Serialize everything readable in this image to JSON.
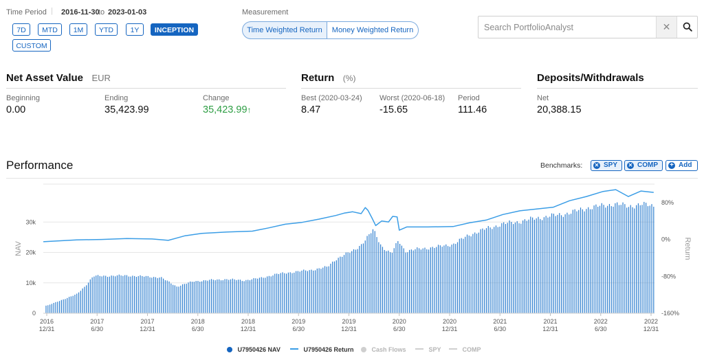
{
  "time_period": {
    "label": "Time Period",
    "start": "2016-11-30",
    "sep": "to",
    "end": "2023-01-03",
    "buttons": [
      "7D",
      "MTD",
      "1M",
      "YTD",
      "1Y",
      "INCEPTION",
      "CUSTOM"
    ],
    "active": "INCEPTION"
  },
  "measurement": {
    "label": "Measurement",
    "options": [
      "Time Weighted Return",
      "Money Weighted Return"
    ],
    "selected": "Time Weighted Return"
  },
  "search": {
    "placeholder": "Search PortfolioAnalyst"
  },
  "nav": {
    "title": "Net Asset Value",
    "currency": "EUR",
    "beginning_label": "Beginning",
    "beginning": "0.00",
    "ending_label": "Ending",
    "ending": "35,423.99",
    "change_label": "Change",
    "change": "35,423.99",
    "change_color": "#2e9e44"
  },
  "return": {
    "title": "Return",
    "unit": "(%)",
    "best_label": "Best (2020-03-24)",
    "best": "8.47",
    "worst_label": "Worst (2020-06-18)",
    "worst": "-15.65",
    "period_label": "Period",
    "period": "111.46"
  },
  "deposits": {
    "title": "Deposits/Withdrawals",
    "net_label": "Net",
    "net": "20,388.15"
  },
  "performance": {
    "title": "Performance",
    "benchmarks_label": "Benchmarks:",
    "benchmarks": [
      "SPY",
      "COMP"
    ],
    "add_label": "Add"
  },
  "chart_data": {
    "type": "bar",
    "left_axis_label": "NAV",
    "right_axis_label": "Return",
    "left_ticks": [
      "0",
      "10k",
      "20k",
      "30k"
    ],
    "left_tick_values": [
      0,
      10000,
      20000,
      30000
    ],
    "right_ticks": [
      "-160%",
      "-80%",
      "0%",
      "80%"
    ],
    "right_tick_values": [
      -160,
      -80,
      0,
      80
    ],
    "ylim_left": [
      0,
      42500
    ],
    "ylim_right": [
      -160,
      120
    ],
    "x_ticks": [
      [
        "2016",
        "12/31"
      ],
      [
        "2017",
        "6/30"
      ],
      [
        "2017",
        "12/31"
      ],
      [
        "2018",
        "6/30"
      ],
      [
        "2018",
        "12/31"
      ],
      [
        "2019",
        "6/30"
      ],
      [
        "2019",
        "12/31"
      ],
      [
        "2020",
        "6/30"
      ],
      [
        "2020",
        "12/31"
      ],
      [
        "2021",
        "6/30"
      ],
      [
        "2021",
        "12/31"
      ],
      [
        "2022",
        "6/30"
      ],
      [
        "2022",
        "12/31"
      ]
    ],
    "xlim": [
      "2016-11-30",
      "2023-01-03"
    ],
    "grid": true,
    "nav_color": "#2f7fcf",
    "return_color": "#3a9de6",
    "series": [
      {
        "name": "U7950426 NAV",
        "kind": "bar",
        "points": [
          [
            "2016-12-15",
            2500
          ],
          [
            "2017-01-31",
            4200
          ],
          [
            "2017-03-31",
            6200
          ],
          [
            "2017-04-30",
            8800
          ],
          [
            "2017-05-31",
            12200
          ],
          [
            "2017-07-31",
            12300
          ],
          [
            "2017-09-30",
            12400
          ],
          [
            "2017-11-30",
            12100
          ],
          [
            "2018-01-31",
            11800
          ],
          [
            "2018-03-31",
            8800
          ],
          [
            "2018-05-31",
            10500
          ],
          [
            "2018-07-31",
            10900
          ],
          [
            "2018-09-30",
            11200
          ],
          [
            "2018-11-30",
            10800
          ],
          [
            "2019-01-31",
            11600
          ],
          [
            "2019-03-31",
            12900
          ],
          [
            "2019-05-31",
            13600
          ],
          [
            "2019-07-31",
            14200
          ],
          [
            "2019-09-30",
            15200
          ],
          [
            "2019-10-31",
            17800
          ],
          [
            "2019-11-30",
            19200
          ],
          [
            "2019-12-31",
            20400
          ],
          [
            "2020-01-31",
            22600
          ],
          [
            "2020-02-29",
            25600
          ],
          [
            "2020-03-15",
            27500
          ],
          [
            "2020-04-15",
            22000
          ],
          [
            "2020-05-20",
            19500
          ],
          [
            "2020-06-15",
            24000
          ],
          [
            "2020-07-10",
            20400
          ],
          [
            "2020-08-31",
            21200
          ],
          [
            "2020-10-31",
            21800
          ],
          [
            "2020-12-31",
            22700
          ],
          [
            "2021-02-28",
            25800
          ],
          [
            "2021-04-30",
            27800
          ],
          [
            "2021-06-30",
            29400
          ],
          [
            "2021-08-31",
            30200
          ],
          [
            "2021-10-31",
            31300
          ],
          [
            "2021-12-31",
            32100
          ],
          [
            "2022-02-28",
            33000
          ],
          [
            "2022-04-30",
            34600
          ],
          [
            "2022-06-30",
            35400
          ],
          [
            "2022-08-10",
            36000
          ],
          [
            "2022-09-30",
            35200
          ],
          [
            "2022-11-15",
            35800
          ],
          [
            "2022-12-31",
            35400
          ]
        ]
      },
      {
        "name": "U7950426 Return",
        "kind": "line",
        "points": [
          [
            "2016-11-30",
            -5
          ],
          [
            "2017-03-31",
            -1
          ],
          [
            "2017-06-30",
            0
          ],
          [
            "2017-09-30",
            2
          ],
          [
            "2017-12-31",
            1
          ],
          [
            "2018-02-28",
            -2
          ],
          [
            "2018-04-30",
            8
          ],
          [
            "2018-06-30",
            13
          ],
          [
            "2018-09-30",
            16
          ],
          [
            "2018-12-31",
            18
          ],
          [
            "2019-02-28",
            25
          ],
          [
            "2019-04-30",
            33
          ],
          [
            "2019-06-30",
            37
          ],
          [
            "2019-08-31",
            44
          ],
          [
            "2019-10-31",
            52
          ],
          [
            "2019-11-30",
            57
          ],
          [
            "2019-12-31",
            60
          ],
          [
            "2020-01-31",
            56
          ],
          [
            "2020-02-15",
            69
          ],
          [
            "2020-02-25",
            63
          ],
          [
            "2020-03-10",
            47
          ],
          [
            "2020-03-24",
            30
          ],
          [
            "2020-04-15",
            40
          ],
          [
            "2020-05-10",
            38
          ],
          [
            "2020-05-25",
            50
          ],
          [
            "2020-06-10",
            49
          ],
          [
            "2020-06-18",
            20
          ],
          [
            "2020-07-15",
            27
          ],
          [
            "2020-09-30",
            27
          ],
          [
            "2020-12-31",
            28
          ],
          [
            "2021-02-28",
            36
          ],
          [
            "2021-04-30",
            42
          ],
          [
            "2021-06-30",
            54
          ],
          [
            "2021-08-31",
            62
          ],
          [
            "2021-10-31",
            66
          ],
          [
            "2021-12-31",
            70
          ],
          [
            "2022-02-28",
            84
          ],
          [
            "2022-04-30",
            93
          ],
          [
            "2022-06-30",
            104
          ],
          [
            "2022-08-15",
            108
          ],
          [
            "2022-09-30",
            93
          ],
          [
            "2022-11-15",
            105
          ],
          [
            "2022-12-31",
            102
          ]
        ]
      }
    ],
    "legend": [
      {
        "name": "U7950426 NAV",
        "style": "dot",
        "color": "#1565c0"
      },
      {
        "name": "U7950426 Return",
        "style": "line",
        "color": "#3a9de6"
      },
      {
        "name": "Cash Flows",
        "style": "dot",
        "color": "#cfcfcf"
      },
      {
        "name": "SPY",
        "style": "line",
        "color": "#cfcfcf"
      },
      {
        "name": "COMP",
        "style": "line",
        "color": "#cfcfcf"
      }
    ],
    "legend_position": "bottom"
  }
}
